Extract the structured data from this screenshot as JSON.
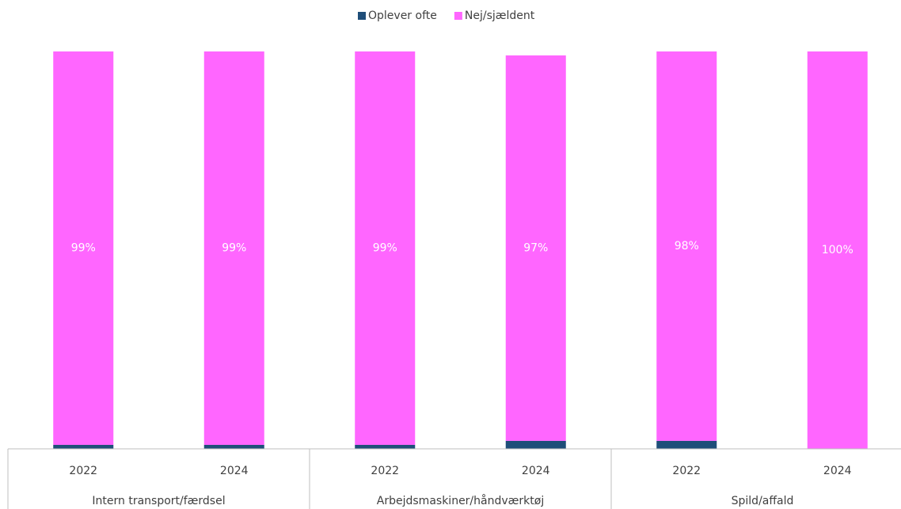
{
  "chart_data": {
    "type": "stacked_bar",
    "categories": [
      "2022",
      "2024",
      "2022",
      "2024",
      "2022",
      "2024"
    ],
    "groups": [
      "Intern transport/færdsel",
      "Arbejdsmaskiner/håndværktøj",
      "Spild/affald"
    ],
    "series": [
      {
        "name": "Oplever ofte",
        "color": "#1f4e79",
        "values": [
          1,
          1,
          1,
          2,
          2,
          0
        ],
        "value_labels": [
          "1%",
          "1%",
          "1%",
          "2%",
          "2%",
          null
        ]
      },
      {
        "name": "Nej/sjældent",
        "color": "#ff66ff",
        "values": [
          99,
          99,
          99,
          97,
          98,
          100
        ],
        "value_labels": [
          "99%",
          "99%",
          "99%",
          "97%",
          "98%",
          "100%"
        ]
      }
    ],
    "ylim": [
      0,
      100
    ],
    "legend": "top"
  }
}
